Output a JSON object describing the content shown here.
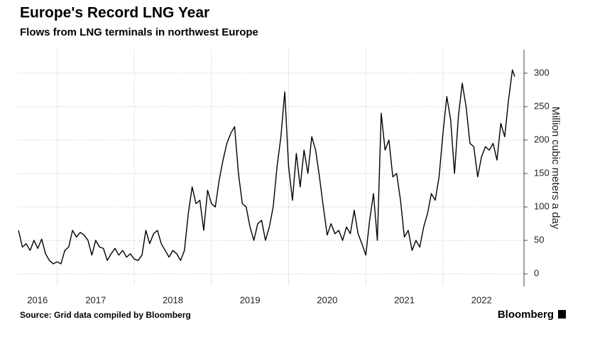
{
  "title": "Europe's Record LNG Year",
  "subtitle": "Flows from LNG terminals in northwest Europe",
  "source": "Source: Grid data compiled by Bloomberg",
  "brand": "Bloomberg",
  "chart_data": {
    "type": "line",
    "y_label": "Million cubic meters a day",
    "xlim": [
      2016.49,
      2023.05
    ],
    "xticks": [
      2017,
      2018,
      2019,
      2020,
      2021,
      2022
    ],
    "year_labels": [
      "2016",
      "2017",
      "2018",
      "2019",
      "2020",
      "2021",
      "2022"
    ],
    "ylim": [
      -19,
      335
    ],
    "yticks": [
      0,
      50,
      100,
      150,
      200,
      250,
      300
    ],
    "grid": true,
    "y_axis_side": "right",
    "x": [
      2016.5,
      2016.55,
      2016.6,
      2016.65,
      2016.7,
      2016.75,
      2016.8,
      2016.85,
      2016.9,
      2016.95,
      2017.0,
      2017.05,
      2017.1,
      2017.15,
      2017.2,
      2017.25,
      2017.3,
      2017.35,
      2017.4,
      2017.45,
      2017.5,
      2017.55,
      2017.6,
      2017.65,
      2017.7,
      2017.75,
      2017.8,
      2017.85,
      2017.9,
      2017.95,
      2018.0,
      2018.05,
      2018.1,
      2018.15,
      2018.2,
      2018.25,
      2018.3,
      2018.35,
      2018.4,
      2018.45,
      2018.5,
      2018.55,
      2018.6,
      2018.65,
      2018.7,
      2018.75,
      2018.8,
      2018.85,
      2018.9,
      2018.95,
      2019.0,
      2019.05,
      2019.1,
      2019.15,
      2019.2,
      2019.25,
      2019.3,
      2019.35,
      2019.4,
      2019.45,
      2019.5,
      2019.55,
      2019.6,
      2019.65,
      2019.7,
      2019.75,
      2019.8,
      2019.85,
      2019.9,
      2019.95,
      2020.0,
      2020.05,
      2020.1,
      2020.15,
      2020.2,
      2020.25,
      2020.3,
      2020.35,
      2020.4,
      2020.45,
      2020.5,
      2020.55,
      2020.6,
      2020.65,
      2020.7,
      2020.75,
      2020.8,
      2020.85,
      2020.9,
      2020.95,
      2021.0,
      2021.05,
      2021.1,
      2021.15,
      2021.2,
      2021.25,
      2021.3,
      2021.35,
      2021.4,
      2021.45,
      2021.5,
      2021.55,
      2021.6,
      2021.65,
      2021.7,
      2021.75,
      2021.8,
      2021.85,
      2021.9,
      2021.95,
      2022.0,
      2022.05,
      2022.1,
      2022.15,
      2022.2,
      2022.25,
      2022.3,
      2022.35,
      2022.4,
      2022.45,
      2022.5,
      2022.55,
      2022.6,
      2022.65,
      2022.7,
      2022.75,
      2022.8,
      2022.85,
      2022.9,
      2022.93
    ],
    "series": [
      {
        "color": "#000000",
        "values": [
          65,
          40,
          45,
          35,
          50,
          38,
          52,
          30,
          20,
          15,
          18,
          15,
          35,
          40,
          65,
          55,
          62,
          58,
          50,
          28,
          50,
          40,
          38,
          20,
          30,
          38,
          28,
          35,
          25,
          30,
          22,
          20,
          28,
          65,
          45,
          60,
          65,
          45,
          35,
          25,
          35,
          30,
          20,
          35,
          90,
          130,
          105,
          110,
          65,
          125,
          105,
          100,
          140,
          170,
          195,
          210,
          220,
          150,
          105,
          100,
          70,
          50,
          75,
          80,
          50,
          70,
          100,
          160,
          205,
          272,
          160,
          110,
          180,
          130,
          185,
          150,
          205,
          185,
          145,
          100,
          58,
          75,
          60,
          65,
          50,
          70,
          60,
          95,
          60,
          45,
          28,
          80,
          120,
          50,
          240,
          185,
          200,
          145,
          150,
          110,
          55,
          65,
          35,
          50,
          40,
          70,
          90,
          120,
          110,
          145,
          210,
          265,
          230,
          150,
          235,
          285,
          250,
          195,
          190,
          145,
          175,
          190,
          185,
          195,
          170,
          225,
          205,
          260,
          305,
          295
        ]
      }
    ]
  }
}
